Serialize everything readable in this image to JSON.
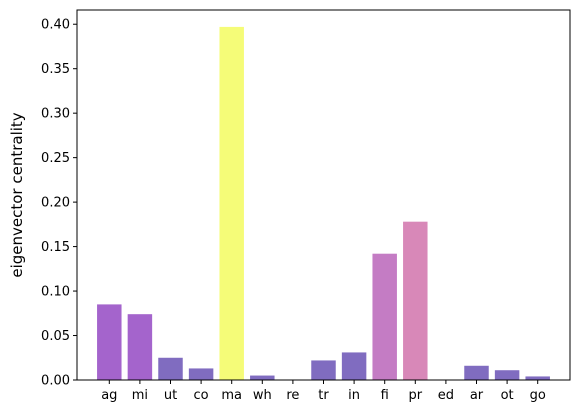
{
  "chart_data": {
    "type": "bar",
    "title": "",
    "xlabel": "",
    "ylabel": "eigenvector centrality",
    "categories": [
      "ag",
      "mi",
      "ut",
      "co",
      "ma",
      "wh",
      "re",
      "tr",
      "in",
      "fi",
      "pr",
      "ed",
      "ar",
      "ot",
      "go"
    ],
    "values": [
      0.085,
      0.074,
      0.025,
      0.013,
      0.397,
      0.005,
      0.0,
      0.022,
      0.031,
      0.142,
      0.178,
      0.0,
      0.016,
      0.011,
      0.004
    ],
    "colors": [
      "#a464cc",
      "#a464cc",
      "#806cc0",
      "#806cc0",
      "#f5fc78",
      "#806cc0",
      "#806cc0",
      "#806cc0",
      "#806cc0",
      "#c47cc4",
      "#d888b8",
      "#806cc0",
      "#806cc0",
      "#806cc0",
      "#806cc0"
    ],
    "ylim": [
      0,
      0.416
    ],
    "yticks": [
      0.0,
      0.05,
      0.1,
      0.15,
      0.2,
      0.25,
      0.3,
      0.35,
      0.4
    ],
    "ytick_labels": [
      "0.00",
      "0.05",
      "0.10",
      "0.15",
      "0.20",
      "0.25",
      "0.30",
      "0.35",
      "0.40"
    ],
    "grid": false,
    "legend": "none"
  }
}
